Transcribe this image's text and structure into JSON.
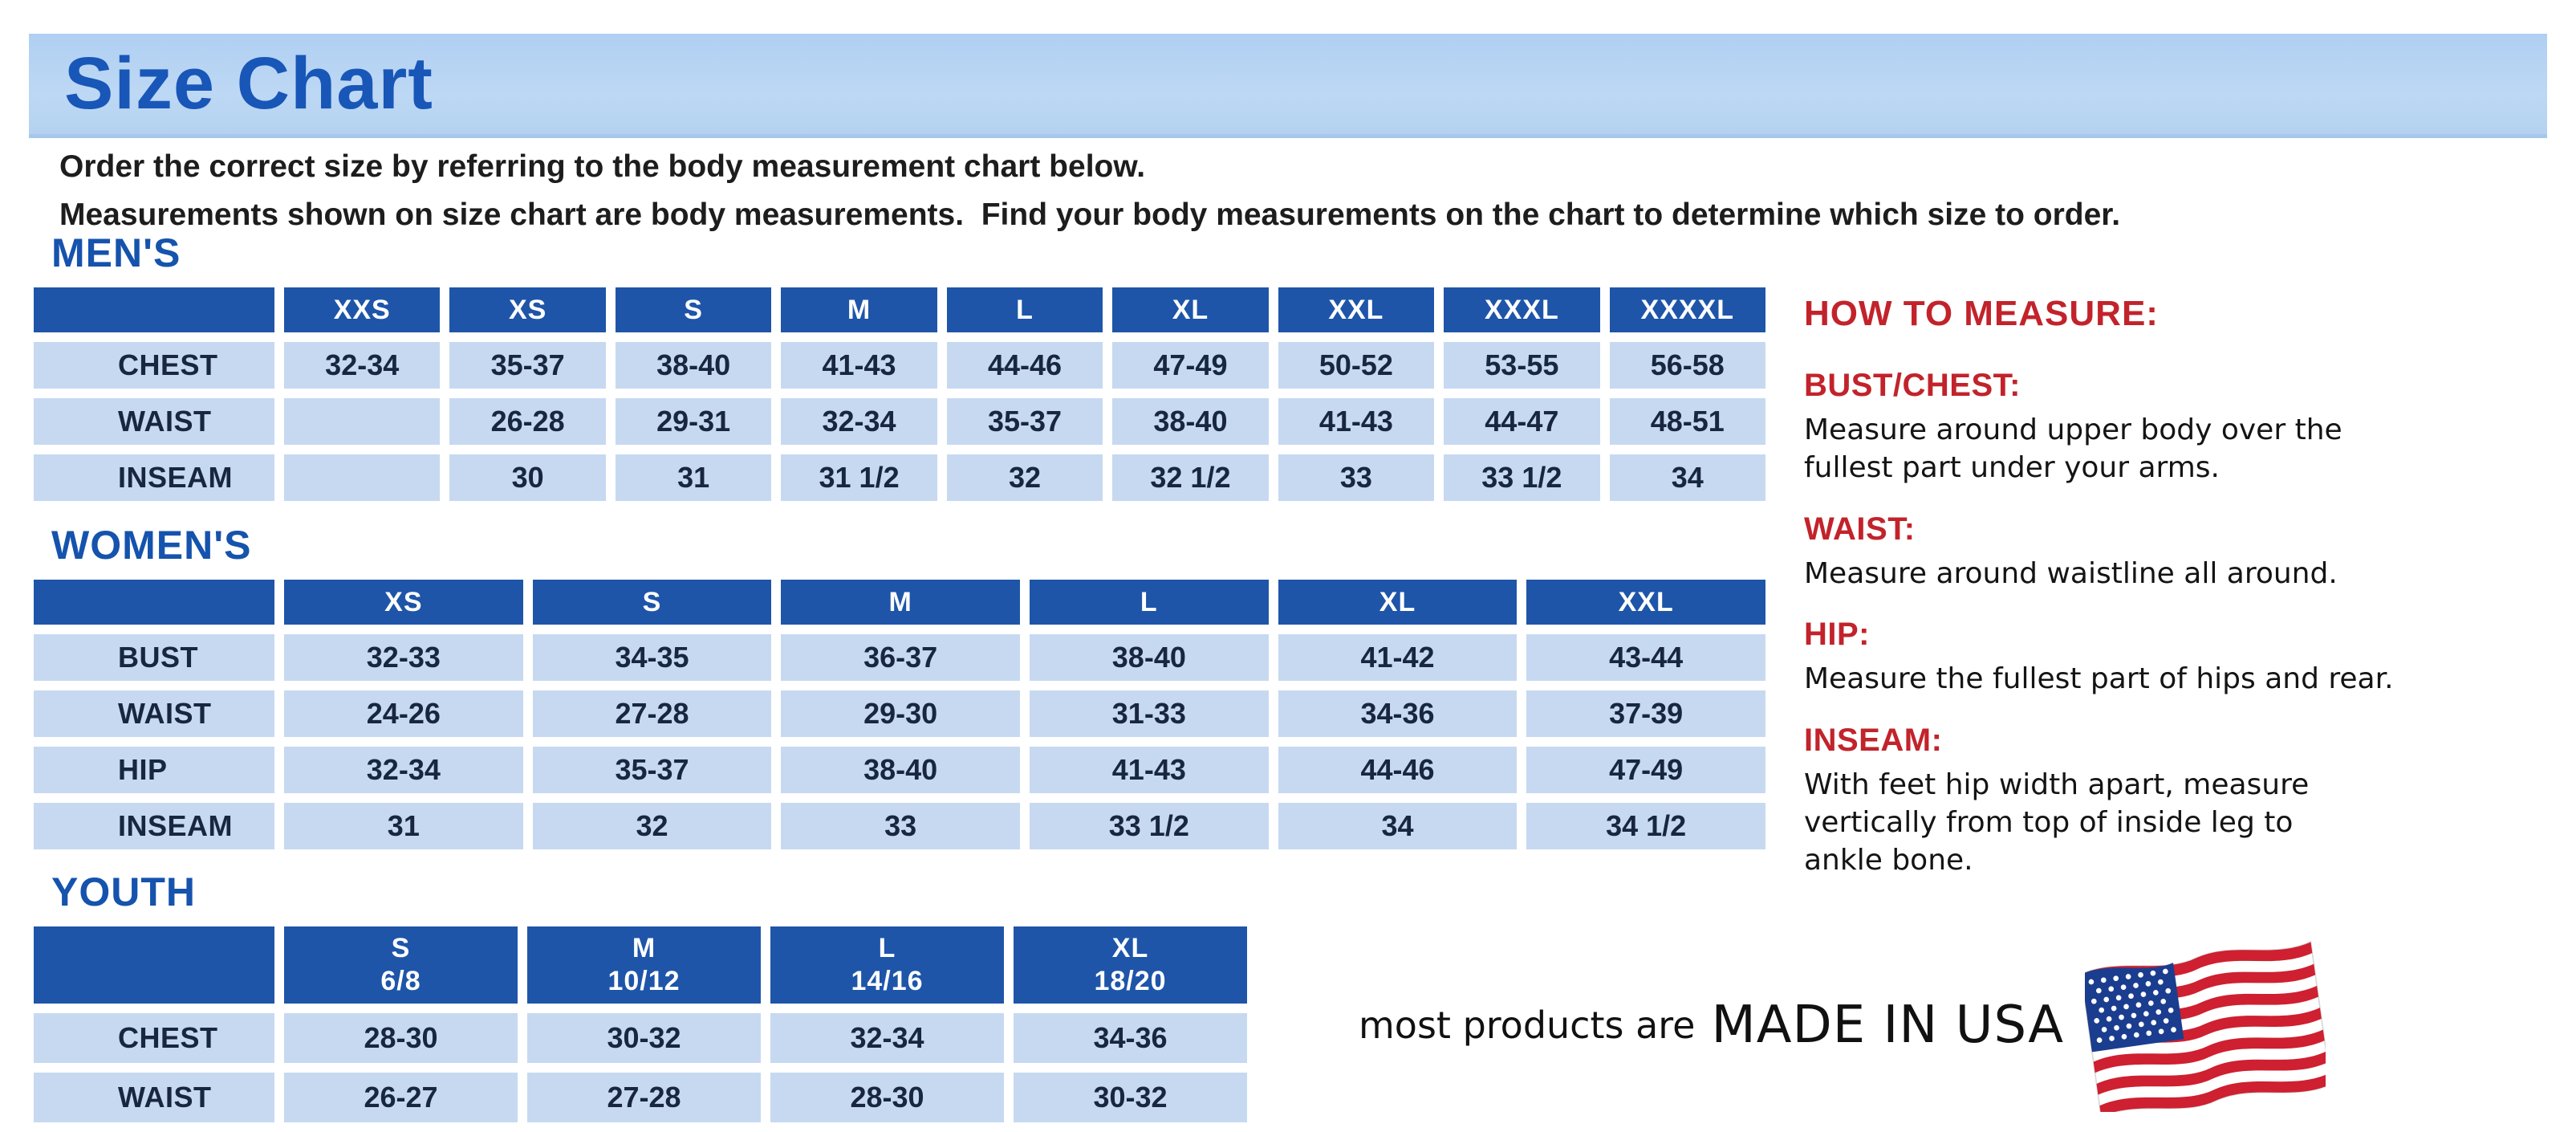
{
  "page": {
    "banner_title": "Size Chart"
  },
  "intro": {
    "line1": "Order the correct size by referring to the body measurement chart below.",
    "line2": "Measurements shown on size chart are body measurements.  Find your body measurements on the chart to determine which size to order."
  },
  "colors": {
    "banner_blue": "#b7d3f1",
    "header_blue": "#1e55a9",
    "cell_blue": "#c6d9f1",
    "heading_blue": "#1553ad",
    "accent_red": "#c2232b"
  },
  "tables": {
    "mens": {
      "section_label": "MEN'S",
      "header": [
        "",
        "XXS",
        "XS",
        "S",
        "M",
        "L",
        "XL",
        "XXL",
        "XXXL",
        "XXXXL"
      ],
      "rows": [
        {
          "label": "CHEST",
          "values": [
            "32-34",
            "35-37",
            "38-40",
            "41-43",
            "44-46",
            "47-49",
            "50-52",
            "53-55",
            "56-58"
          ]
        },
        {
          "label": "WAIST",
          "values": [
            "",
            "26-28",
            "29-31",
            "32-34",
            "35-37",
            "38-40",
            "41-43",
            "44-47",
            "48-51"
          ]
        },
        {
          "label": "INSEAM",
          "values": [
            "",
            "30",
            "31",
            "31 1/2",
            "32",
            "32 1/2",
            "33",
            "33 1/2",
            "34"
          ]
        }
      ]
    },
    "womens": {
      "section_label": "WOMEN'S",
      "header": [
        "",
        "XS",
        "S",
        "M",
        "L",
        "XL",
        "XXL"
      ],
      "rows": [
        {
          "label": "BUST",
          "values": [
            "32-33",
            "34-35",
            "36-37",
            "38-40",
            "41-42",
            "43-44"
          ]
        },
        {
          "label": "WAIST",
          "values": [
            "24-26",
            "27-28",
            "29-30",
            "31-33",
            "34-36",
            "37-39"
          ]
        },
        {
          "label": "HIP",
          "values": [
            "32-34",
            "35-37",
            "38-40",
            "41-43",
            "44-46",
            "47-49"
          ]
        },
        {
          "label": "INSEAM",
          "values": [
            "31",
            "32",
            "33",
            "33 1/2",
            "34",
            "34 1/2"
          ]
        }
      ]
    },
    "youth": {
      "section_label": "YOUTH",
      "header": [
        "",
        "S\n6/8",
        "M\n10/12",
        "L\n14/16",
        "XL\n18/20"
      ],
      "rows": [
        {
          "label": "CHEST",
          "values": [
            "28-30",
            "30-32",
            "32-34",
            "34-36"
          ]
        },
        {
          "label": "WAIST",
          "values": [
            "26-27",
            "27-28",
            "28-30",
            "30-32"
          ]
        }
      ]
    }
  },
  "how_to_measure": {
    "title": "HOW TO MEASURE:",
    "sections": [
      {
        "label": "BUST/CHEST:",
        "text": "Measure around upper body over the\nfullest part under your arms."
      },
      {
        "label": "WAIST:",
        "text": "Measure around waistline all around."
      },
      {
        "label": "HIP:",
        "text": "Measure the fullest part of hips and rear."
      },
      {
        "label": "INSEAM:",
        "text": "With feet hip width apart, measure\nvertically from top of inside leg to\nankle bone."
      }
    ]
  },
  "footer": {
    "prefix": "most products are",
    "made_in": "MADE IN USA",
    "flag_icon": "usa-flag-icon"
  }
}
